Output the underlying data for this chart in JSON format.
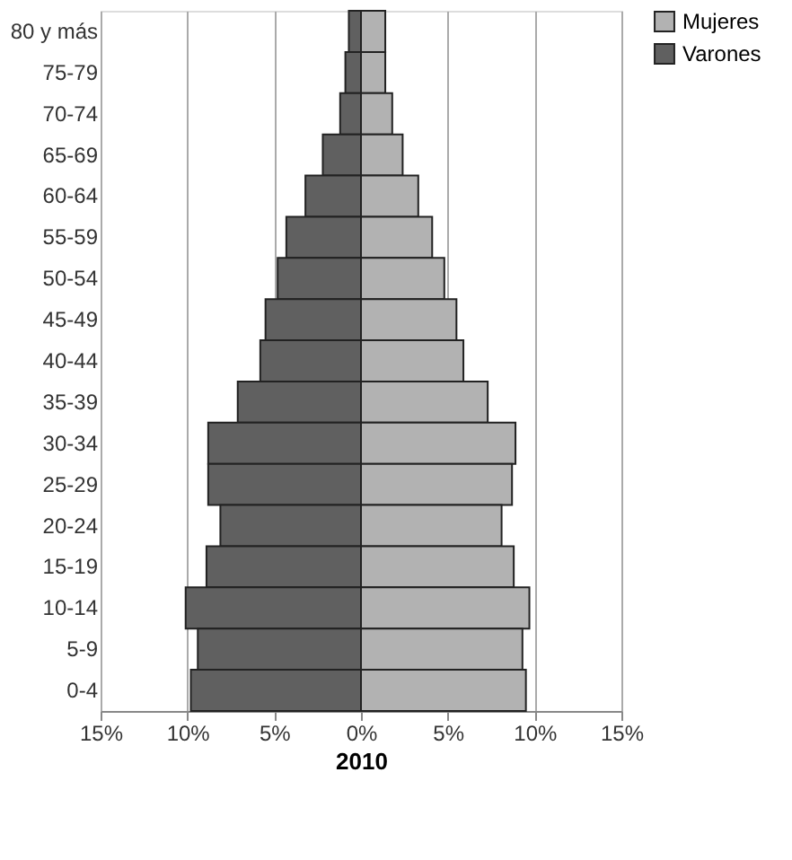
{
  "chart_data": {
    "type": "bar",
    "orientation": "horizontal",
    "xlabel": "2010",
    "categories": [
      "80 y más",
      "75-79",
      "70-74",
      "65-69",
      "60-64",
      "55-59",
      "50-54",
      "45-49",
      "40-44",
      "35-39",
      "30-34",
      "25-29",
      "20-24",
      "15-19",
      "10-14",
      "5-9",
      "0-4"
    ],
    "series": [
      {
        "name": "Mujeres",
        "color": "#b2b2b2",
        "values": [
          1.4,
          1.4,
          1.8,
          2.4,
          3.3,
          4.1,
          4.8,
          5.5,
          5.9,
          7.3,
          8.9,
          8.7,
          8.1,
          8.8,
          9.7,
          9.3,
          9.5
        ]
      },
      {
        "name": "Varones",
        "color": "#606060",
        "values": [
          -0.7,
          -0.9,
          -1.2,
          -2.2,
          -3.2,
          -4.3,
          -4.8,
          -5.5,
          -5.8,
          -7.1,
          -8.8,
          -8.8,
          -8.1,
          -8.9,
          -10.1,
          -9.4,
          -9.8
        ]
      }
    ],
    "xlim": [
      -15,
      15
    ],
    "xticks": [
      {
        "value": -15,
        "label": "15%"
      },
      {
        "value": -10,
        "label": "10%"
      },
      {
        "value": -5,
        "label": "5%"
      },
      {
        "value": 0,
        "label": "0%"
      },
      {
        "value": 5,
        "label": "5%"
      },
      {
        "value": 10,
        "label": "10%"
      },
      {
        "value": 15,
        "label": "15%"
      }
    ],
    "grid": "x",
    "legend": "right",
    "stacked": true
  }
}
